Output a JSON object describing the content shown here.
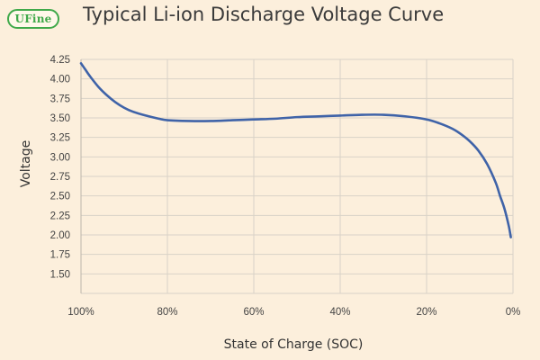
{
  "header": {
    "logo_text": "UFine",
    "title": "Typical Li-ion Discharge Voltage Curve"
  },
  "chart_data": {
    "type": "line",
    "title": "Typical Li-ion Discharge Voltage Curve",
    "xlabel": "State of Charge (SOC)",
    "ylabel": "Voltage",
    "x_ticks": [
      "100%",
      "80%",
      "60%",
      "40%",
      "20%",
      "0%"
    ],
    "x_tick_values": [
      100,
      80,
      60,
      40,
      20,
      0
    ],
    "y_ticks": [
      "4.25",
      "4.00",
      "3.75",
      "3.50",
      "3.25",
      "3.00",
      "2.75",
      "2.50",
      "2.25",
      "2.00",
      "1.75",
      "1.50"
    ],
    "y_tick_values": [
      4.25,
      4.0,
      3.75,
      3.5,
      3.25,
      3.0,
      2.75,
      2.5,
      2.25,
      2.0,
      1.75,
      1.5
    ],
    "xlim": [
      100,
      0
    ],
    "ylim": [
      1.25,
      4.25
    ],
    "grid": true,
    "series_color": "#3f63a8",
    "series": [
      {
        "x": [
          100,
          99,
          98,
          96,
          94,
          92,
          90,
          88,
          85,
          82,
          80,
          75,
          70,
          65,
          60,
          55,
          50,
          45,
          40,
          35,
          30,
          25,
          20,
          17,
          14,
          12,
          10,
          8,
          6,
          4,
          3,
          2,
          1,
          0.5
        ],
        "values": [
          4.2,
          4.12,
          4.04,
          3.9,
          3.79,
          3.7,
          3.63,
          3.58,
          3.53,
          3.49,
          3.47,
          3.46,
          3.46,
          3.47,
          3.48,
          3.49,
          3.51,
          3.52,
          3.53,
          3.54,
          3.54,
          3.52,
          3.48,
          3.43,
          3.36,
          3.29,
          3.2,
          3.08,
          2.91,
          2.67,
          2.5,
          2.34,
          2.12,
          1.97
        ]
      }
    ]
  }
}
